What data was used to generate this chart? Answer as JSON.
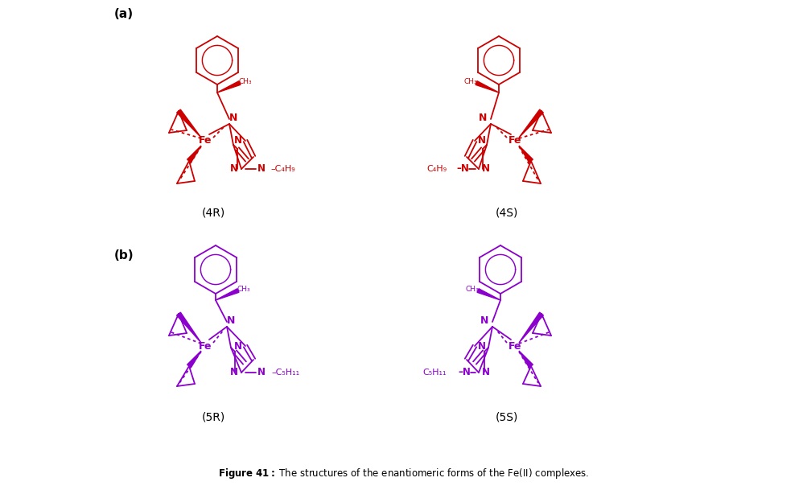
{
  "title_a": "(a)",
  "title_b": "(b)",
  "label_4R": "(4R)",
  "label_4S": "(4S)",
  "label_5R": "(5R)",
  "label_5S": "(5S)",
  "caption_bold": "Figure 41:",
  "caption_normal": " The structures of the enantiomeric forms of the Fe(II) complexes.",
  "color_red": "#CC0000",
  "color_purple": "#8B00CC",
  "bg_color": "#FFFFFF",
  "fig_width": 10.04,
  "fig_height": 6.04,
  "dpi": 100
}
